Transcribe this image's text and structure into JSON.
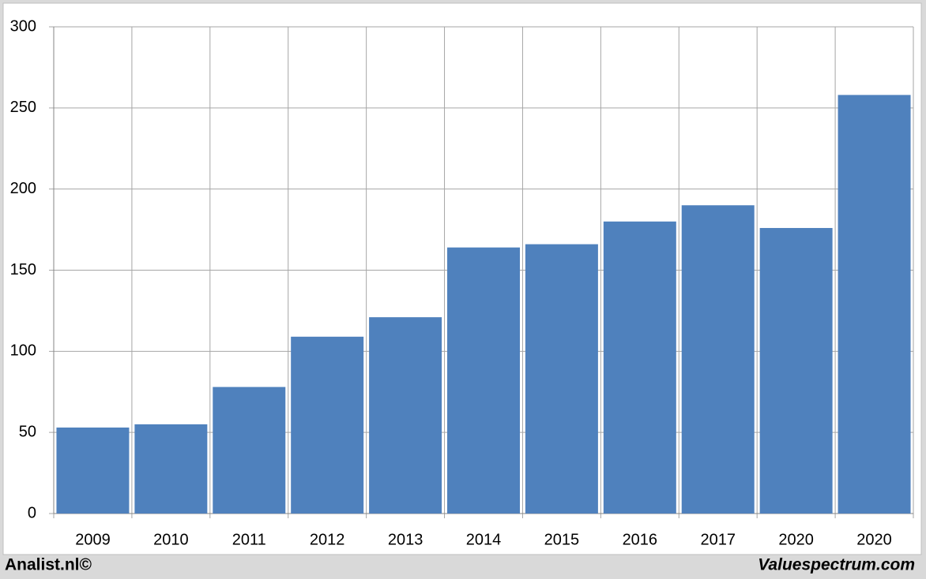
{
  "chart_data": {
    "type": "bar",
    "categories": [
      "2009",
      "2010",
      "2011",
      "2012",
      "2013",
      "2014",
      "2015",
      "2016",
      "2017",
      "2020",
      "2020"
    ],
    "values": [
      53,
      55,
      78,
      109,
      121,
      164,
      166,
      180,
      190,
      176,
      258
    ],
    "color": "#4f81bd",
    "ylim": [
      0,
      300
    ],
    "yticks": [
      0,
      50,
      100,
      150,
      200,
      250,
      300
    ],
    "grid": true
  },
  "footer": {
    "left": "Analist.nl©",
    "right": "Valuespectrum.com"
  }
}
